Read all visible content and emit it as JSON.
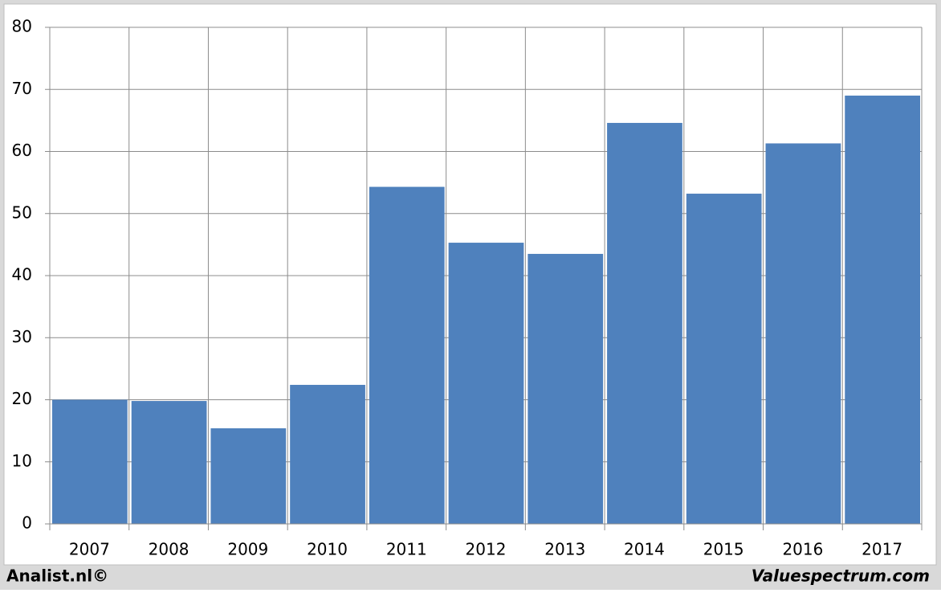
{
  "chart_data": {
    "type": "bar",
    "categories": [
      "2007",
      "2008",
      "2009",
      "2010",
      "2011",
      "2012",
      "2013",
      "2014",
      "2015",
      "2016",
      "2017"
    ],
    "values": [
      20.0,
      19.8,
      15.4,
      22.4,
      54.3,
      45.3,
      43.5,
      64.6,
      53.2,
      61.3,
      69.0
    ],
    "color": "#4f81bd",
    "ylim": [
      0,
      80
    ],
    "yticks": [
      0,
      10,
      20,
      30,
      40,
      50,
      60,
      70,
      80
    ],
    "grid": true
  },
  "footer": {
    "left": "Analist.nl©",
    "right": "Valuespectrum.com"
  }
}
